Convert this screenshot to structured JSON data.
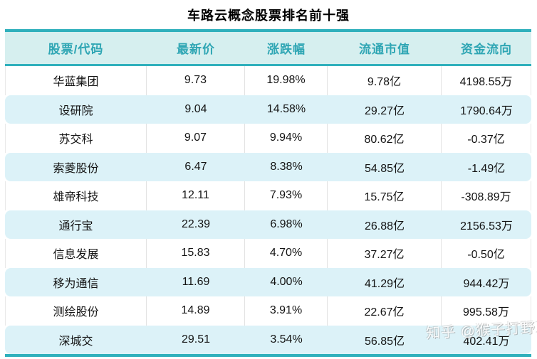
{
  "title": "车路云概念股票排名前十强",
  "watermark": "知乎 @猴子打野刀",
  "colors": {
    "teal_border": "#2fb0bc",
    "header_bg": "#d6efef",
    "header_text": "#2fa6b4",
    "stripe_row_bg": "#dcf2f8",
    "white_row_bg": "#ffffff",
    "divider": "#e3e3e3",
    "cell_text": "#141414"
  },
  "chart_data": {
    "type": "table",
    "title": "车路云概念股票排名前十强",
    "columns": [
      "股票/代码",
      "最新价",
      "涨跌幅",
      "流通市值",
      "资金流向"
    ],
    "rows": [
      [
        "华蓝集团",
        "9.73",
        "19.98%",
        "9.78亿",
        "4198.55万"
      ],
      [
        "设研院",
        "9.04",
        "14.58%",
        "29.27亿",
        "1790.64万"
      ],
      [
        "苏交科",
        "9.07",
        "9.94%",
        "80.62亿",
        "-0.37亿"
      ],
      [
        "索菱股份",
        "6.47",
        "8.38%",
        "54.85亿",
        "-1.49亿"
      ],
      [
        "雄帝科技",
        "12.11",
        "7.93%",
        "15.75亿",
        "-308.89万"
      ],
      [
        "通行宝",
        "22.39",
        "6.98%",
        "26.88亿",
        "2156.53万"
      ],
      [
        "信息发展",
        "15.83",
        "4.70%",
        "37.27亿",
        "-0.50亿"
      ],
      [
        "移为通信",
        "11.69",
        "4.00%",
        "41.29亿",
        "944.42万"
      ],
      [
        "测绘股份",
        "14.89",
        "3.91%",
        "22.67亿",
        "995.58万"
      ],
      [
        "深城交",
        "29.51",
        "3.54%",
        "56.85亿",
        "402.41万"
      ]
    ]
  }
}
